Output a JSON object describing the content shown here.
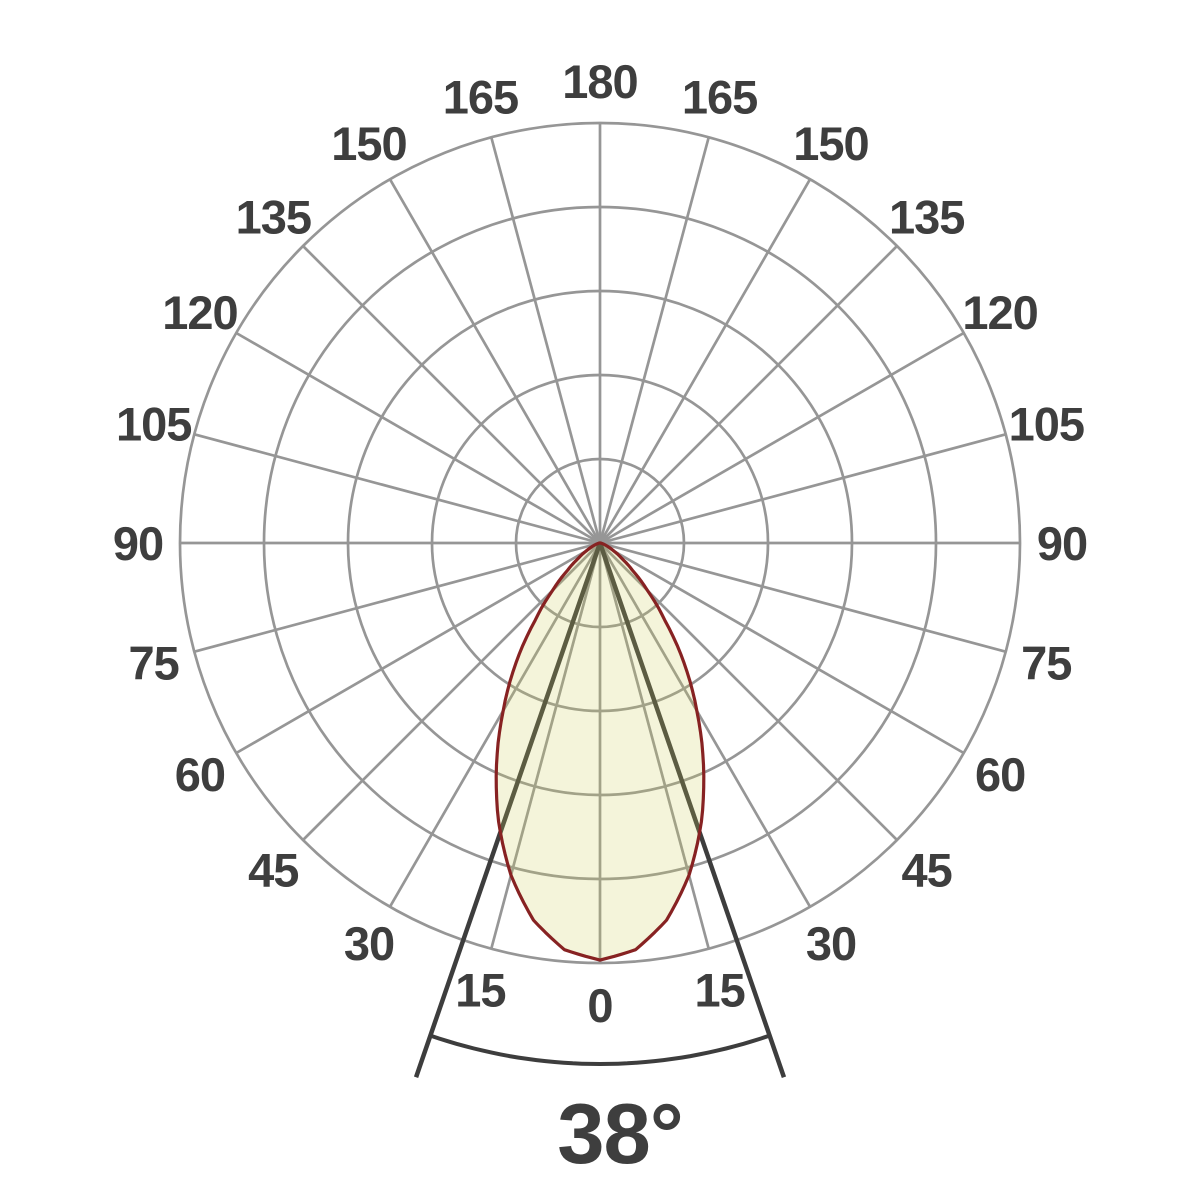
{
  "chart_data": {
    "type": "polar",
    "chart_kind": "photometric-light-distribution",
    "beam": {
      "label": "38°",
      "angle_total_deg": 38,
      "half_angle_deg": 19
    },
    "angle_ticks": [
      {
        "deg": 0,
        "label": "0",
        "mirrored": false
      },
      {
        "deg": 15,
        "label": "15",
        "mirrored": true
      },
      {
        "deg": 30,
        "label": "30",
        "mirrored": true
      },
      {
        "deg": 45,
        "label": "45",
        "mirrored": true
      },
      {
        "deg": 60,
        "label": "60",
        "mirrored": true
      },
      {
        "deg": 75,
        "label": "75",
        "mirrored": true
      },
      {
        "deg": 90,
        "label": "90",
        "mirrored": true
      },
      {
        "deg": 105,
        "label": "105",
        "mirrored": true
      },
      {
        "deg": 120,
        "label": "120",
        "mirrored": true
      },
      {
        "deg": 135,
        "label": "135",
        "mirrored": true
      },
      {
        "deg": 150,
        "label": "150",
        "mirrored": true
      },
      {
        "deg": 165,
        "label": "165",
        "mirrored": true
      },
      {
        "deg": 180,
        "label": "180",
        "mirrored": false
      }
    ],
    "rings_rel": [
      0.2,
      0.4,
      0.6,
      0.8,
      1.0
    ],
    "spoke_step_deg": 15,
    "intensity_profile": {
      "comment_units": "angle from beam axis (0 = straight down), radius relative to outer ring",
      "angles_deg": [
        0,
        5,
        10,
        15,
        20,
        25,
        30,
        35,
        40,
        45,
        50,
        55,
        60,
        65,
        70,
        75,
        80,
        85,
        90
      ],
      "r_rel": [
        0.993,
        0.972,
        0.912,
        0.819,
        0.706,
        0.583,
        0.461,
        0.349,
        0.24,
        0.16,
        0.1,
        0.062,
        0.038,
        0.022,
        0.012,
        0.006,
        0.003,
        0.002,
        0.001
      ]
    },
    "legend": "none",
    "grid": "on",
    "colors": {
      "background": "#ffffff",
      "grid": "#969696",
      "lobe_stroke": "#872222",
      "lobe_fill": "rgba(205,205,88,0.22)",
      "beam_marker": "#3d3d3d",
      "label_text": "#3e3e3e"
    }
  }
}
